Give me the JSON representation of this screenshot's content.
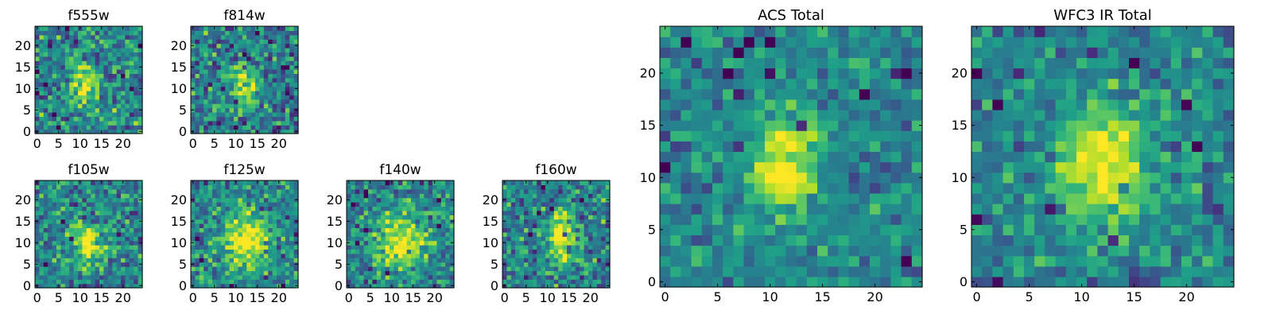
{
  "chart_data": [
    {
      "type": "heatmap",
      "title": "f555w",
      "xticks": [
        0,
        5,
        10,
        15,
        20
      ],
      "yticks": [
        0,
        5,
        10,
        15,
        20
      ],
      "xlim": [
        -0.5,
        24.5
      ],
      "ylim": [
        -0.5,
        24.5
      ],
      "grid_size": 25,
      "colormap": "viridis",
      "source_center": [
        11,
        11
      ],
      "source_width": [
        2.2,
        3.2
      ],
      "noise": 0.34,
      "seed": 11
    },
    {
      "type": "heatmap",
      "title": "f814w",
      "xticks": [
        0,
        5,
        10,
        15,
        20
      ],
      "yticks": [
        0,
        5,
        10,
        15,
        20
      ],
      "xlim": [
        -0.5,
        24.5
      ],
      "ylim": [
        -0.5,
        24.5
      ],
      "grid_size": 25,
      "colormap": "viridis",
      "source_center": [
        12,
        11
      ],
      "source_width": [
        1.8,
        3.0
      ],
      "noise": 0.34,
      "seed": 22
    },
    {
      "type": "heatmap",
      "title": "f105w",
      "xticks": [
        0,
        5,
        10,
        15,
        20
      ],
      "yticks": [
        0,
        5,
        10,
        15,
        20
      ],
      "xlim": [
        -0.5,
        24.5
      ],
      "ylim": [
        -0.5,
        24.5
      ],
      "grid_size": 25,
      "colormap": "viridis",
      "source_center": [
        12,
        10
      ],
      "source_width": [
        2.8,
        3.2
      ],
      "noise": 0.32,
      "seed": 33
    },
    {
      "type": "heatmap",
      "title": "f125w",
      "xticks": [
        0,
        5,
        10,
        15,
        20
      ],
      "yticks": [
        0,
        5,
        10,
        15,
        20
      ],
      "xlim": [
        -0.5,
        24.5
      ],
      "ylim": [
        -0.5,
        24.5
      ],
      "grid_size": 25,
      "colormap": "viridis",
      "source_center": [
        12,
        11
      ],
      "source_width": [
        4.0,
        5.0
      ],
      "noise": 0.3,
      "seed": 44
    },
    {
      "type": "heatmap",
      "title": "f140w",
      "xticks": [
        0,
        5,
        10,
        15,
        20
      ],
      "yticks": [
        0,
        5,
        10,
        15,
        20
      ],
      "xlim": [
        -0.5,
        24.5
      ],
      "ylim": [
        -0.5,
        24.5
      ],
      "grid_size": 25,
      "colormap": "viridis",
      "source_center": [
        12,
        10
      ],
      "source_width": [
        4.0,
        4.5
      ],
      "noise": 0.3,
      "seed": 55
    },
    {
      "type": "heatmap",
      "title": "f160w",
      "xticks": [
        0,
        5,
        10,
        15,
        20
      ],
      "yticks": [
        0,
        5,
        10,
        15,
        20
      ],
      "xlim": [
        -0.5,
        24.5
      ],
      "ylim": [
        -0.5,
        24.5
      ],
      "grid_size": 25,
      "colormap": "viridis",
      "source_center": [
        13,
        11
      ],
      "source_width": [
        2.2,
        4.5
      ],
      "noise": 0.32,
      "seed": 66
    },
    {
      "type": "heatmap",
      "title": "ACS Total",
      "xticks": [
        0,
        5,
        10,
        15,
        20
      ],
      "yticks": [
        0,
        5,
        10,
        15,
        20
      ],
      "xlim": [
        -0.5,
        24.5
      ],
      "ylim": [
        -0.5,
        24.5
      ],
      "grid_size": 25,
      "colormap": "viridis",
      "source_center": [
        11.5,
        11
      ],
      "source_width": [
        2.3,
        3.5
      ],
      "noise": 0.22,
      "seed": 77
    },
    {
      "type": "heatmap",
      "title": "WFC3 IR Total",
      "xticks": [
        0,
        5,
        10,
        15,
        20
      ],
      "yticks": [
        0,
        5,
        10,
        15,
        20
      ],
      "xlim": [
        -0.5,
        24.5
      ],
      "ylim": [
        -0.5,
        24.5
      ],
      "grid_size": 25,
      "colormap": "viridis",
      "source_center": [
        12,
        11
      ],
      "source_width": [
        3.0,
        4.0
      ],
      "noise": 0.24,
      "seed": 88
    }
  ]
}
